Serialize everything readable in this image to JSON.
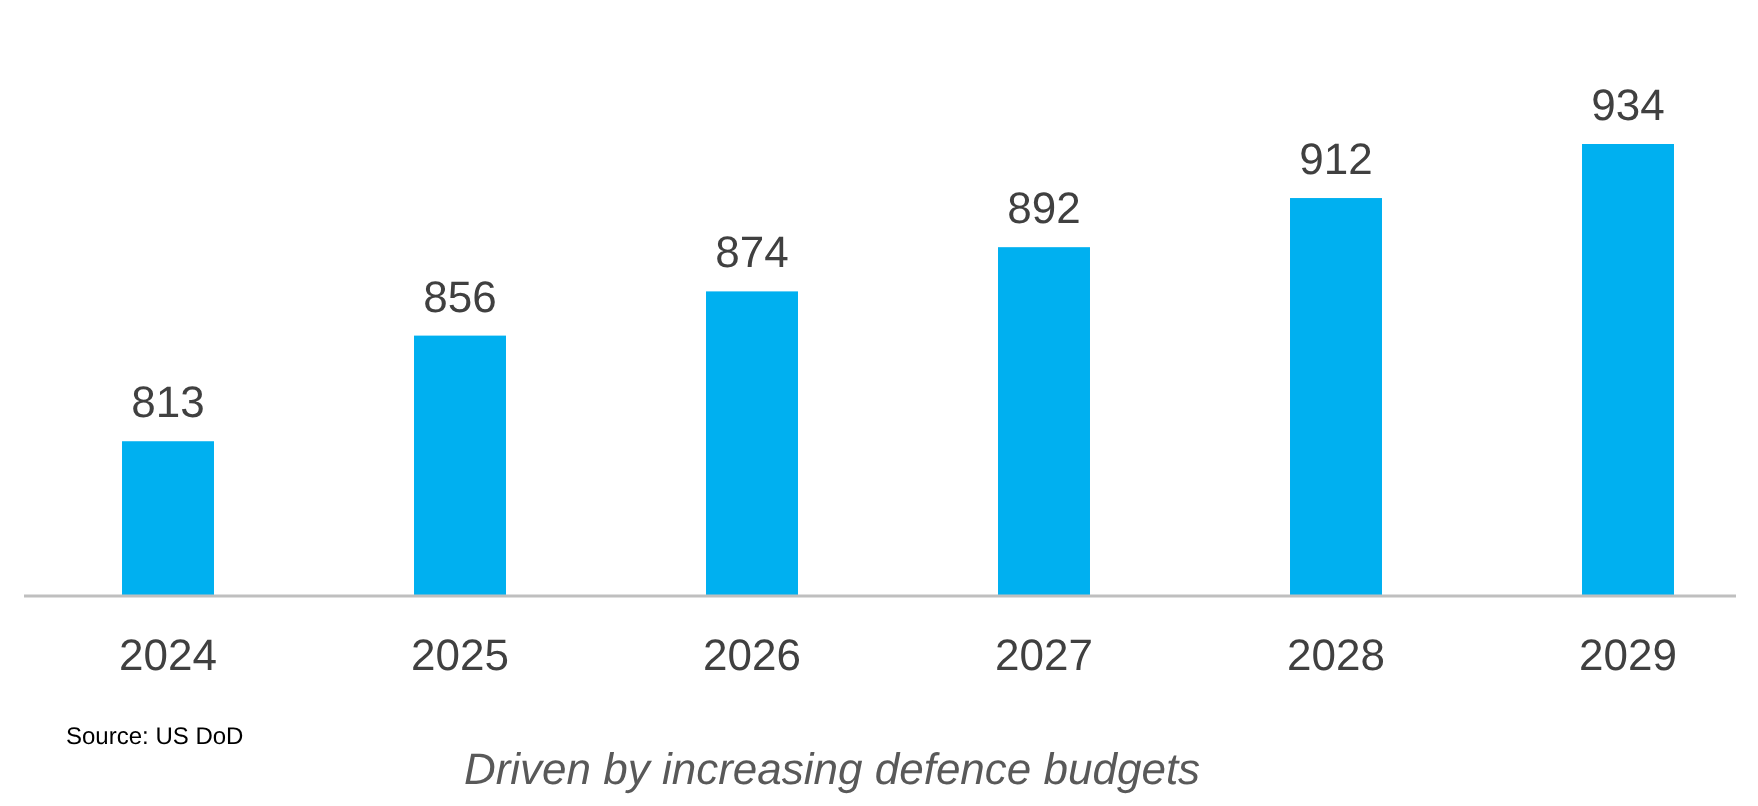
{
  "chart_data": {
    "type": "bar",
    "categories": [
      "2024",
      "2025",
      "2026",
      "2027",
      "2028",
      "2029"
    ],
    "values": [
      813,
      856,
      874,
      892,
      912,
      934
    ],
    "color": "#00b0f0",
    "ylim": [
      750,
      934
    ],
    "data_labels": true,
    "tick_labels": "x",
    "annotations": [
      "Source: US DoD",
      "Driven by increasing defence budgets"
    ]
  }
}
